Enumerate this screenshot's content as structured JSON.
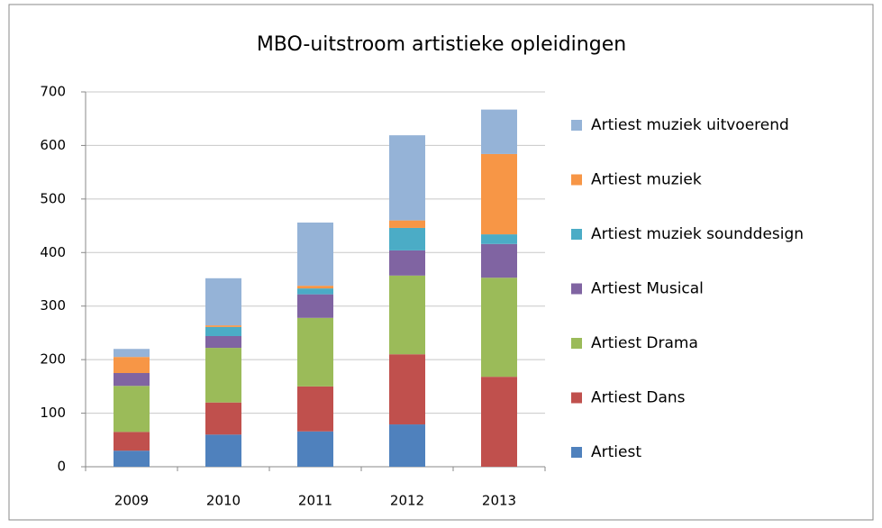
{
  "chart_data": {
    "type": "stacked_bar",
    "title": "MBO-uitstroom artistieke opleidingen",
    "categories": [
      "2009",
      "2010",
      "2011",
      "2012",
      "2013"
    ],
    "series": [
      {
        "name": "Artiest",
        "color": "#4f81bd",
        "values": [
          30,
          60,
          66,
          79,
          0
        ]
      },
      {
        "name": "Artiest Dans",
        "color": "#c0504d",
        "values": [
          35,
          60,
          84,
          131,
          168
        ]
      },
      {
        "name": "Artiest Drama",
        "color": "#9bbb59",
        "values": [
          86,
          102,
          128,
          147,
          185
        ]
      },
      {
        "name": "Artiest Musical",
        "color": "#8064a2",
        "values": [
          24,
          22,
          44,
          47,
          63
        ]
      },
      {
        "name": "Artiest muziek sounddesign",
        "color": "#4bacc6",
        "values": [
          0,
          17,
          11,
          42,
          18
        ]
      },
      {
        "name": "Artiest muziek",
        "color": "#f79646",
        "values": [
          30,
          3,
          5,
          14,
          150
        ]
      },
      {
        "name": "Artiest muziek uitvoerend",
        "color": "#95b3d7",
        "values": [
          15,
          88,
          118,
          159,
          83
        ]
      }
    ],
    "ylim": [
      0,
      700
    ],
    "yticks": [
      0,
      100,
      200,
      300,
      400,
      500,
      600,
      700
    ],
    "grid": true,
    "legend": "right"
  }
}
